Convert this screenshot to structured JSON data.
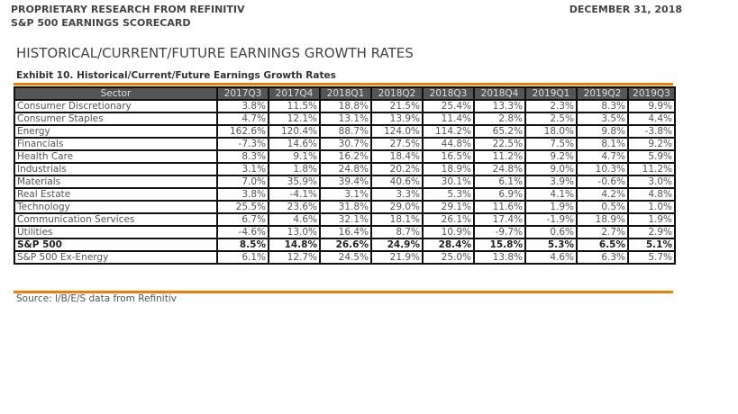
{
  "header": {
    "left_line1": "PROPRIETARY RESEARCH FROM REFINITIV",
    "left_line2": "S&P 500 EARNINGS SCORECARD",
    "date": "DECEMBER 31, 2018"
  },
  "title": "HISTORICAL/CURRENT/FUTURE EARNINGS GROWTH RATES",
  "exhibit": "Exhibit 10. Historical/Current/Future Earnings Growth Rates",
  "table": {
    "columns": [
      "Sector",
      "2017Q3",
      "2017Q4",
      "2018Q1",
      "2018Q2",
      "2018Q3",
      "2018Q4",
      "2019Q1",
      "2019Q2",
      "2019Q3"
    ],
    "rows": [
      {
        "sector": "Consumer Discretionary",
        "values": [
          "3.8%",
          "11.5%",
          "18.8%",
          "21.5%",
          "25.4%",
          "13.3%",
          "2.3%",
          "8.3%",
          "9.9%"
        ]
      },
      {
        "sector": "Consumer Staples",
        "values": [
          "4.7%",
          "12.1%",
          "13.1%",
          "13.9%",
          "11.4%",
          "2.8%",
          "2.5%",
          "3.5%",
          "4.4%"
        ]
      },
      {
        "sector": "Energy",
        "values": [
          "162.6%",
          "120.4%",
          "88.7%",
          "124.0%",
          "114.2%",
          "65.2%",
          "18.0%",
          "9.8%",
          "-3.8%"
        ]
      },
      {
        "sector": "Financials",
        "values": [
          "-7.3%",
          "14.6%",
          "30.7%",
          "27.5%",
          "44.8%",
          "22.5%",
          "7.5%",
          "8.1%",
          "9.2%"
        ]
      },
      {
        "sector": "Health Care",
        "values": [
          "8.3%",
          "9.1%",
          "16.2%",
          "18.4%",
          "16.5%",
          "11.2%",
          "9.2%",
          "4.7%",
          "5.9%"
        ]
      },
      {
        "sector": "Industrials",
        "values": [
          "3.1%",
          "1.8%",
          "24.8%",
          "20.2%",
          "18.9%",
          "24.8%",
          "9.0%",
          "10.3%",
          "11.2%"
        ]
      },
      {
        "sector": "Materials",
        "values": [
          "7.0%",
          "35.9%",
          "39.4%",
          "40.6%",
          "30.1%",
          "6.1%",
          "3.9%",
          "-0.6%",
          "3.0%"
        ]
      },
      {
        "sector": "Real Estate",
        "values": [
          "3.8%",
          "-4.1%",
          "3.1%",
          "3.3%",
          "5.3%",
          "6.9%",
          "4.1%",
          "4.2%",
          "4.8%"
        ]
      },
      {
        "sector": "Technology",
        "values": [
          "25.5%",
          "23.6%",
          "31.8%",
          "29.0%",
          "29.1%",
          "11.6%",
          "1.9%",
          "0.5%",
          "1.0%"
        ]
      },
      {
        "sector": "Communication Services",
        "values": [
          "6.7%",
          "4.6%",
          "32.1%",
          "18.1%",
          "26.1%",
          "17.4%",
          "-1.9%",
          "18.9%",
          "1.9%"
        ]
      },
      {
        "sector": "Utilities",
        "values": [
          "-4.6%",
          "13.0%",
          "16.4%",
          "8.7%",
          "10.9%",
          "-9.7%",
          "0.6%",
          "2.7%",
          "2.9%"
        ]
      },
      {
        "sector": "S&P 500",
        "bold": true,
        "values": [
          "8.5%",
          "14.8%",
          "26.6%",
          "24.9%",
          "28.4%",
          "15.8%",
          "5.3%",
          "6.5%",
          "5.1%"
        ]
      },
      {
        "sector": "S&P 500 Ex-Energy",
        "values": [
          "6.1%",
          "12.7%",
          "24.5%",
          "21.9%",
          "25.0%",
          "13.8%",
          "4.6%",
          "6.3%",
          "5.7%"
        ]
      }
    ]
  },
  "source": "Source: I/B/E/S data from Refinitiv"
}
